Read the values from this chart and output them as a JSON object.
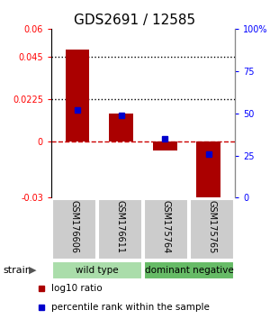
{
  "title": "GDS2691 / 12585",
  "samples": [
    "GSM176606",
    "GSM176611",
    "GSM175764",
    "GSM175765"
  ],
  "log10_ratio": [
    0.049,
    0.015,
    -0.005,
    -0.033
  ],
  "percentile_rank": [
    52,
    49,
    35,
    26
  ],
  "ylim_left": [
    -0.03,
    0.06
  ],
  "ylim_right": [
    0,
    100
  ],
  "yticks_left": [
    -0.03,
    0,
    0.0225,
    0.045,
    0.06
  ],
  "yticks_right": [
    0,
    25,
    50,
    75,
    100
  ],
  "bar_color": "#aa0000",
  "dot_color": "#0000cc",
  "groups": [
    {
      "label": "wild type",
      "samples": [
        0,
        1
      ],
      "color": "#aaddaa"
    },
    {
      "label": "dominant negative",
      "samples": [
        2,
        3
      ],
      "color": "#66bb66"
    }
  ],
  "strain_label": "strain",
  "legend_items": [
    {
      "color": "#aa0000",
      "label": "log10 ratio"
    },
    {
      "color": "#0000cc",
      "label": "percentile rank within the sample"
    }
  ],
  "sample_box_color": "#cccccc",
  "zero_line_color": "#cc0000",
  "dotted_line_color": "#000000",
  "title_fontsize": 11,
  "tick_fontsize": 7.5,
  "bar_width": 0.55
}
